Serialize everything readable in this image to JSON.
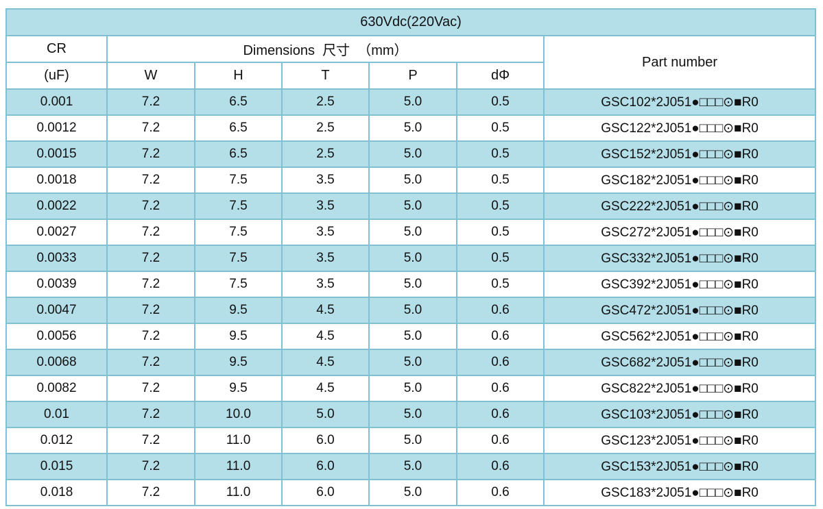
{
  "title": "630Vdc(220Vac)",
  "header": {
    "cr": "CR",
    "unit": "(uF)",
    "dimensions": "Dimensions  尺寸  （mm）",
    "columns": [
      "W",
      "H",
      "T",
      "P",
      "dΦ"
    ],
    "part_number": "Part number"
  },
  "table": {
    "rows": [
      [
        "0.001",
        "7.2",
        "6.5",
        "2.5",
        "5.0",
        "0.5",
        "GSC102*2J051●□□□⊙■R0"
      ],
      [
        "0.0012",
        "7.2",
        "6.5",
        "2.5",
        "5.0",
        "0.5",
        "GSC122*2J051●□□□⊙■R0"
      ],
      [
        "0.0015",
        "7.2",
        "6.5",
        "2.5",
        "5.0",
        "0.5",
        "GSC152*2J051●□□□⊙■R0"
      ],
      [
        "0.0018",
        "7.2",
        "7.5",
        "3.5",
        "5.0",
        "0.5",
        "GSC182*2J051●□□□⊙■R0"
      ],
      [
        "0.0022",
        "7.2",
        "7.5",
        "3.5",
        "5.0",
        "0.5",
        "GSC222*2J051●□□□⊙■R0"
      ],
      [
        "0.0027",
        "7.2",
        "7.5",
        "3.5",
        "5.0",
        "0.5",
        "GSC272*2J051●□□□⊙■R0"
      ],
      [
        "0.0033",
        "7.2",
        "7.5",
        "3.5",
        "5.0",
        "0.5",
        "GSC332*2J051●□□□⊙■R0"
      ],
      [
        "0.0039",
        "7.2",
        "7.5",
        "3.5",
        "5.0",
        "0.5",
        "GSC392*2J051●□□□⊙■R0"
      ],
      [
        "0.0047",
        "7.2",
        "9.5",
        "4.5",
        "5.0",
        "0.6",
        "GSC472*2J051●□□□⊙■R0"
      ],
      [
        "0.0056",
        "7.2",
        "9.5",
        "4.5",
        "5.0",
        "0.6",
        "GSC562*2J051●□□□⊙■R0"
      ],
      [
        "0.0068",
        "7.2",
        "9.5",
        "4.5",
        "5.0",
        "0.6",
        "GSC682*2J051●□□□⊙■R0"
      ],
      [
        "0.0082",
        "7.2",
        "9.5",
        "4.5",
        "5.0",
        "0.6",
        "GSC822*2J051●□□□⊙■R0"
      ],
      [
        "0.01",
        "7.2",
        "10.0",
        "5.0",
        "5.0",
        "0.6",
        "GSC103*2J051●□□□⊙■R0"
      ],
      [
        "0.012",
        "7.2",
        "11.0",
        "6.0",
        "5.0",
        "0.6",
        "GSC123*2J051●□□□⊙■R0"
      ],
      [
        "0.015",
        "7.2",
        "11.0",
        "6.0",
        "5.0",
        "0.6",
        "GSC153*2J051●□□□⊙■R0"
      ],
      [
        "0.018",
        "7.2",
        "11.0",
        "6.0",
        "5.0",
        "0.6",
        "GSC183*2J051●□□□⊙■R0"
      ]
    ]
  }
}
